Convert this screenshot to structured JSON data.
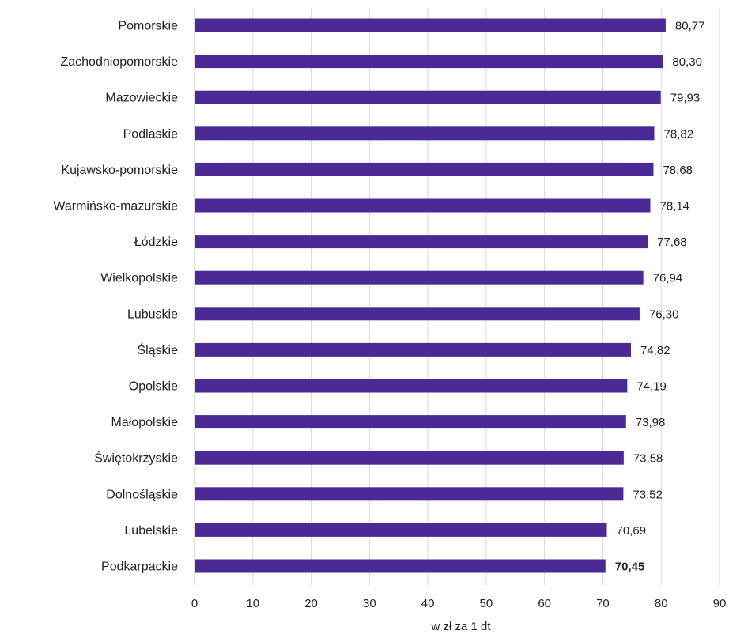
{
  "chart_data": {
    "type": "bar",
    "orientation": "horizontal",
    "categories": [
      "Pomorskie",
      "Zachodniopomorskie",
      "Mazowieckie",
      "Podlaskie",
      "Kujawsko-pomorskie",
      "Warmińsko-mazurskie",
      "Łódzkie",
      "Wielkopolskie",
      "Lubuskie",
      "Śląskie",
      "Opolskie",
      "Małopolskie",
      "Świętokrzyskie",
      "Dolnośląskie",
      "Lubelskie",
      "Podkarpackie"
    ],
    "values": [
      80.77,
      80.3,
      79.93,
      78.82,
      78.68,
      78.14,
      77.68,
      76.94,
      76.3,
      74.82,
      74.19,
      73.98,
      73.58,
      73.52,
      70.69,
      70.45
    ],
    "value_labels": [
      "80,77",
      "80,30",
      "79,93",
      "78,82",
      "78,68",
      "78,14",
      "77,68",
      "76,94",
      "76,30",
      "74,82",
      "74,19",
      "73,98",
      "73,58",
      "73,52",
      "70,69",
      "70,45"
    ],
    "highlight_index": 15,
    "xlabel": "w zł za 1 dt",
    "xlim": [
      0,
      90
    ],
    "xticks": [
      0,
      10,
      20,
      30,
      40,
      50,
      60,
      70,
      80,
      90
    ],
    "xtick_labels": [
      "0",
      "10",
      "20",
      "30",
      "40",
      "50",
      "60",
      "70",
      "80",
      "90"
    ],
    "grid": true,
    "bar_color": "#4b2a96"
  }
}
